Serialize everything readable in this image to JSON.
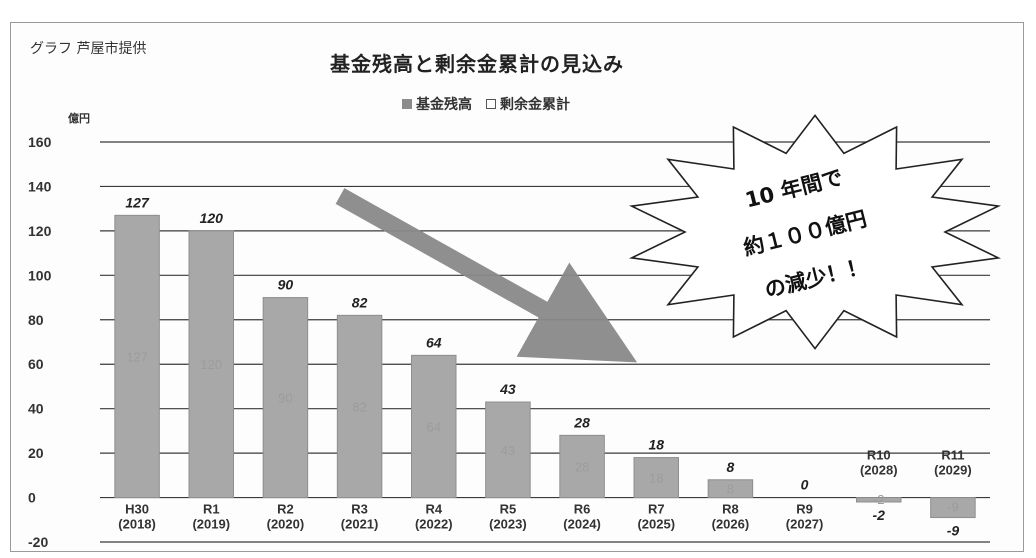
{
  "header": {
    "source_label": "グラフ 芦屋市提供"
  },
  "chart_data": {
    "type": "bar",
    "title": "基金残高と剰余金累計の見込み",
    "ylabel": "億円",
    "ylim": [
      -20,
      160
    ],
    "yticks": [
      -20,
      0,
      20,
      40,
      60,
      80,
      100,
      120,
      140,
      160
    ],
    "ytick_labels": [
      "-20",
      "0",
      "20",
      "40",
      "60",
      "80",
      "100",
      "120",
      "140",
      "160"
    ],
    "grid": true,
    "legend_position": "top",
    "categories": [
      [
        "H30",
        "(2018)"
      ],
      [
        "R1",
        "(2019)"
      ],
      [
        "R2",
        "(2020)"
      ],
      [
        "R3",
        "(2021)"
      ],
      [
        "R4",
        "(2022)"
      ],
      [
        "R5",
        "(2023)"
      ],
      [
        "R6",
        "(2024)"
      ],
      [
        "R7",
        "(2025)"
      ],
      [
        "R8",
        "(2026)"
      ],
      [
        "R9",
        "(2027)"
      ],
      [
        "R10",
        "(2028)"
      ],
      [
        "R11",
        "(2029)"
      ]
    ],
    "series": [
      {
        "name": "基金残高",
        "color": "#a8a8a8",
        "values": [
          127,
          120,
          90,
          82,
          64,
          43,
          28,
          18,
          8,
          0,
          -2,
          -9
        ]
      }
    ],
    "legend": [
      {
        "label": "基金残高",
        "swatch": "filled",
        "color": "#8c8c8c"
      },
      {
        "label": "剰余金累計",
        "swatch": "outline",
        "color": "#555555"
      }
    ],
    "annotation": {
      "lines": [
        "10 年間で",
        "約１００億円",
        "の減少！！"
      ]
    }
  }
}
